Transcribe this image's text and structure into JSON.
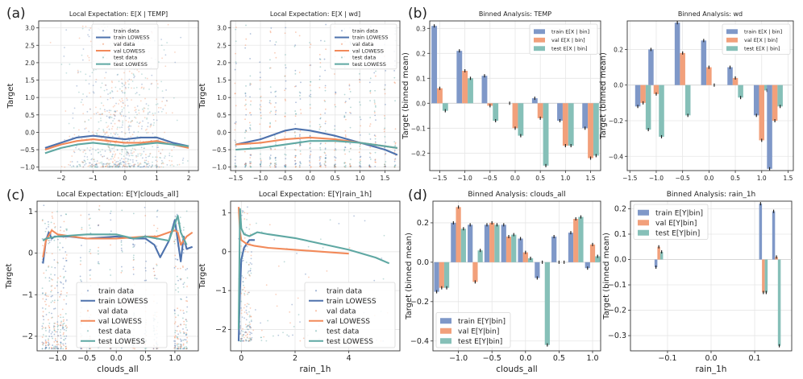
{
  "panel_letters": [
    "(a)",
    "(b)",
    "(c)",
    "(d)"
  ],
  "legend_text": {
    "scatter": [
      "train data",
      "train LOWESS",
      "val data",
      "val LOWESS",
      "test data",
      "test LOWESS"
    ],
    "bar_math": [
      "train E[X | bin]",
      "val E[X | bin]",
      "test E[X | bin]"
    ],
    "bar_plain": [
      "train E[Y|bin]",
      "val E[Y|bin]",
      "test E[Y|bin]"
    ]
  },
  "colors": {
    "train": "#4e72ad",
    "val": "#f28a5a",
    "test": "#5fa8a3",
    "train_bar": "#7f98c8",
    "val_bar": "#f2a07b",
    "test_bar": "#86c0b8",
    "grid": "#e6e6e6",
    "axis": "#333333"
  },
  "chart_data": [
    {
      "type": "scatter",
      "id": "a1",
      "title": "Local Expectation: E[X | TEMP]",
      "title_italic": true,
      "xlabel": "",
      "ylabel": "Target",
      "xlim": [
        -2.7,
        2.3
      ],
      "ylim": [
        -1.1,
        3.2
      ],
      "xticks": [
        -2,
        -1,
        0,
        1,
        2
      ],
      "xticklabels": [
        "−2",
        "−1",
        "0",
        "1",
        "2"
      ],
      "yticks": [
        -1.0,
        -0.5,
        0.0,
        0.5,
        1.0,
        1.5,
        2.0,
        2.5,
        3.0
      ],
      "yticklabels": [
        "−1.0",
        "−0.5",
        "0.0",
        "0.5",
        "1.0",
        "1.5",
        "2.0",
        "2.5",
        "3.0"
      ],
      "legend_style": "small",
      "legend_position": "upper-center",
      "series": [
        {
          "name": "train LOWESS",
          "kind": "train",
          "x": [
            -2.5,
            -2,
            -1.5,
            -1,
            -0.5,
            0,
            0.5,
            1,
            1.5,
            2
          ],
          "y": [
            -0.45,
            -0.3,
            -0.15,
            -0.1,
            -0.15,
            -0.2,
            -0.15,
            -0.15,
            -0.3,
            -0.4
          ]
        },
        {
          "name": "val LOWESS",
          "kind": "val",
          "x": [
            -2.5,
            -2,
            -1.5,
            -1,
            -0.5,
            0,
            0.5,
            1,
            1.5,
            2
          ],
          "y": [
            -0.5,
            -0.35,
            -0.25,
            -0.2,
            -0.25,
            -0.3,
            -0.3,
            -0.25,
            -0.35,
            -0.45
          ]
        },
        {
          "name": "test LOWESS",
          "kind": "test",
          "x": [
            -2.5,
            -2,
            -1.5,
            -1,
            -0.5,
            0,
            0.5,
            1,
            1.5,
            2
          ],
          "y": [
            -0.6,
            -0.45,
            -0.35,
            -0.3,
            -0.35,
            -0.4,
            -0.35,
            -0.3,
            -0.35,
            -0.4
          ]
        }
      ],
      "cloud": {
        "type": "dense",
        "xrange": [
          -2.5,
          2.2
        ],
        "ymin": -1.0,
        "ymax": 3.1
      }
    },
    {
      "type": "scatter",
      "id": "a2",
      "title": "Local Expectation: E[X | wd]",
      "title_italic": true,
      "xlabel": "",
      "ylabel": "Target",
      "xlim": [
        -1.6,
        1.8
      ],
      "ylim": [
        -1.1,
        3.2
      ],
      "xticks": [
        -1.5,
        -1.0,
        -0.5,
        0.0,
        0.5,
        1.0,
        1.5
      ],
      "xticklabels": [
        "−1.5",
        "−1.0",
        "−0.5",
        "0.0",
        "0.5",
        "1.0",
        "1.5"
      ],
      "yticks": [
        -1.0,
        -0.5,
        0.0,
        0.5,
        1.0,
        1.5,
        2.0,
        2.5,
        3.0
      ],
      "yticklabels": [
        "−1.0",
        "−0.5",
        "0.0",
        "0.5",
        "1.0",
        "1.5",
        "2.0",
        "2.5",
        "3.0"
      ],
      "legend_style": "small",
      "legend_position": "upper-right",
      "series": [
        {
          "name": "train LOWESS",
          "kind": "train",
          "x": [
            -1.5,
            -1,
            -0.5,
            -0.3,
            0,
            0.5,
            1,
            1.5,
            1.75
          ],
          "y": [
            -0.35,
            -0.2,
            0.05,
            0.1,
            0.05,
            -0.1,
            -0.3,
            -0.5,
            -0.65
          ]
        },
        {
          "name": "val LOWESS",
          "kind": "val",
          "x": [
            -1.5,
            -1,
            -0.5,
            0,
            0.5,
            1,
            1.5,
            1.75
          ],
          "y": [
            -0.35,
            -0.3,
            -0.2,
            -0.15,
            -0.2,
            -0.3,
            -0.4,
            -0.45
          ]
        },
        {
          "name": "test LOWESS",
          "kind": "test",
          "x": [
            -1.5,
            -1,
            -0.5,
            0,
            0.5,
            1,
            1.5,
            1.75
          ],
          "y": [
            -0.5,
            -0.45,
            -0.35,
            -0.25,
            -0.25,
            -0.3,
            -0.4,
            -0.45
          ]
        }
      ],
      "cloud": {
        "type": "columns",
        "columns": [
          -1.5,
          -1.3,
          -1.2,
          -1.0,
          -0.8,
          -0.7,
          -0.5,
          -0.3,
          -0.2,
          0.0,
          0.2,
          0.3,
          0.5,
          0.7,
          0.8,
          1.0,
          1.2,
          1.3,
          1.5,
          1.7
        ],
        "ymin": -1.0,
        "ymax": 3.1
      }
    },
    {
      "type": "bar",
      "id": "b1",
      "title": "Binned Analysis: TEMP",
      "ylabel": "Target (binned mean)",
      "xlabel": "",
      "categories": [
        -1.5,
        -1.0,
        -0.5,
        0.0,
        0.5,
        1.0,
        1.5
      ],
      "xlim": [
        -1.7,
        1.7
      ],
      "ylim": [
        -0.27,
        0.33
      ],
      "xticks": [
        -1.5,
        -1.0,
        -0.5,
        0.0,
        0.5,
        1.0,
        1.5
      ],
      "xticklabels": [
        "−1.5",
        "−1.0",
        "−0.5",
        "0.0",
        "0.5",
        "1.0",
        "1.5"
      ],
      "yticks": [
        -0.2,
        -0.1,
        0.0,
        0.1,
        0.2,
        0.3
      ],
      "yticklabels": [
        "−0.2",
        "−0.1",
        "0.0",
        "0.1",
        "0.2",
        "0.3"
      ],
      "bar_width": 0.11,
      "legend_style": "math",
      "legend_position": "upper-right",
      "series": [
        {
          "name": "train E[X | bin]",
          "kind": "train",
          "values": [
            0.31,
            0.21,
            0.11,
            0.0,
            0.02,
            -0.07,
            -0.1
          ]
        },
        {
          "name": "val E[X | bin]",
          "kind": "val",
          "values": [
            0.06,
            0.13,
            -0.01,
            -0.1,
            -0.06,
            -0.17,
            -0.22
          ]
        },
        {
          "name": "test E[X | bin]",
          "kind": "test",
          "values": [
            -0.03,
            0.1,
            -0.07,
            -0.13,
            -0.25,
            -0.17,
            -0.21
          ]
        }
      ]
    },
    {
      "type": "bar",
      "id": "b2",
      "title": "Binned Analysis: wd",
      "ylabel": "Target (binned mean)",
      "xlabel": "",
      "categories": [
        -1.25,
        -1.0,
        -0.5,
        0.0,
        0.5,
        1.0,
        1.25
      ],
      "xlim": [
        -1.55,
        1.6
      ],
      "ylim": [
        -0.48,
        0.36
      ],
      "xticks": [
        -1.5,
        -1.0,
        -0.5,
        0.0,
        0.5,
        1.0,
        1.5
      ],
      "xticklabels": [
        "−1.5",
        "−1.0",
        "−0.5",
        "0.0",
        "0.5",
        "1.0",
        "1.5"
      ],
      "yticks": [
        -0.4,
        -0.2,
        0.0,
        0.2
      ],
      "yticklabels": [
        "−0.4",
        "−0.2",
        "0.0",
        "0.2"
      ],
      "bar_width": 0.1,
      "legend_style": "math",
      "legend_position": "upper-right",
      "series": [
        {
          "name": "train E[X | bin]",
          "kind": "train",
          "values": [
            -0.12,
            0.2,
            0.35,
            0.25,
            0.1,
            -0.17,
            -0.47
          ]
        },
        {
          "name": "val E[X | bin]",
          "kind": "val",
          "values": [
            -0.1,
            -0.05,
            0.18,
            0.1,
            0.04,
            -0.31,
            -0.2
          ]
        },
        {
          "name": "test E[X | bin]",
          "kind": "test",
          "values": [
            -0.25,
            -0.29,
            -0.17,
            0.0,
            -0.07,
            -0.03,
            -0.12
          ]
        }
      ]
    },
    {
      "type": "scatter",
      "id": "c1",
      "title": "Local Expectation: E[Y|clouds_all]",
      "title_italic": false,
      "xlabel": "clouds_all",
      "ylabel": "Target",
      "xlim": [
        -1.35,
        1.4
      ],
      "ylim": [
        -2.35,
        1.25
      ],
      "xticks": [
        -1.0,
        -0.5,
        0.0,
        0.5,
        1.0
      ],
      "xticklabels": [
        "−1.0",
        "−0.5",
        "0.0",
        "0.5",
        "1.0"
      ],
      "yticks": [
        -2,
        -1,
        0,
        1
      ],
      "yticklabels": [
        "−2",
        "−1",
        "0",
        "1"
      ],
      "legend_style": "large",
      "legend_position": "lower-center",
      "series": [
        {
          "name": "train LOWESS",
          "kind": "train",
          "x": [
            -1.25,
            -1.2,
            -1.15,
            -1.1,
            -1.05,
            -1.0,
            -0.8,
            -0.5,
            0.0,
            0.3,
            0.5,
            0.65,
            0.75,
            0.9,
            1.0,
            1.05,
            1.1,
            1.15,
            1.2,
            1.3
          ],
          "y": [
            -0.25,
            0.3,
            0.5,
            0.35,
            0.4,
            0.4,
            0.4,
            0.35,
            0.4,
            0.35,
            0.35,
            0.2,
            -0.1,
            0.3,
            0.8,
            0.3,
            -0.2,
            0.4,
            0.1,
            0.15
          ]
        },
        {
          "name": "val LOWESS",
          "kind": "val",
          "x": [
            -1.25,
            -1.2,
            -1.1,
            -1.0,
            -0.5,
            0.0,
            0.5,
            0.7,
            0.9,
            1.0,
            1.05,
            1.1,
            1.2,
            1.3
          ],
          "y": [
            -0.1,
            0.3,
            0.55,
            0.45,
            0.35,
            0.35,
            0.4,
            0.4,
            0.5,
            0.55,
            0.5,
            0.2,
            0.4,
            0.5
          ]
        },
        {
          "name": "test LOWESS",
          "kind": "test",
          "x": [
            -1.25,
            -1.2,
            -1.0,
            -0.5,
            0.0,
            0.3,
            0.5,
            0.7,
            0.9,
            1.0,
            1.05,
            1.1,
            1.2
          ],
          "y": [
            0.3,
            0.35,
            0.4,
            0.45,
            0.45,
            0.35,
            0.4,
            0.35,
            0.3,
            0.7,
            0.9,
            0.5,
            0.2
          ]
        }
      ],
      "cloud": {
        "type": "columns",
        "columns": [
          -1.25,
          -1.2,
          -1.15,
          -1.1,
          -1.05,
          -1.0,
          -0.95,
          -0.9,
          -0.85,
          -0.6,
          -0.45,
          -0.3,
          -0.1,
          0.1,
          0.3,
          0.5,
          0.65,
          0.7,
          1.0,
          1.05,
          1.1,
          1.15,
          1.2
        ],
        "ymin": -2.3,
        "ymax": 1.15
      }
    },
    {
      "type": "scatter",
      "id": "c2",
      "title": "Local Expectation: E[Y|rain_1h]",
      "title_italic": false,
      "xlabel": "rain_1h",
      "ylabel": "Target",
      "xlim": [
        -0.4,
        5.9
      ],
      "ylim": [
        -2.55,
        1.3
      ],
      "xticks": [
        0,
        2,
        4
      ],
      "xticklabels": [
        "0",
        "2",
        "4"
      ],
      "yticks": [
        -2,
        -1,
        0,
        1
      ],
      "yticklabels": [
        "−2",
        "−1",
        "0",
        "1"
      ],
      "legend_style": "large",
      "legend_position": "lower-right",
      "series": [
        {
          "name": "train LOWESS",
          "kind": "train",
          "x": [
            -0.1,
            -0.05,
            0.0,
            0.1,
            0.2,
            0.3,
            0.5
          ],
          "y": [
            -2.3,
            -1.0,
            -0.2,
            0.1,
            0.2,
            0.3,
            0.3
          ]
        },
        {
          "name": "val LOWESS",
          "kind": "val",
          "x": [
            -0.1,
            -0.05,
            0.0,
            0.2,
            0.5,
            1.0,
            2.0,
            3.0,
            4.0
          ],
          "y": [
            1.15,
            0.5,
            0.3,
            0.2,
            0.15,
            0.1,
            0.05,
            0.0,
            -0.05
          ]
        },
        {
          "name": "test LOWESS",
          "kind": "test",
          "x": [
            -0.1,
            -0.05,
            0.0,
            0.1,
            0.3,
            0.6,
            1.0,
            2.0,
            3.0,
            4.0,
            5.0,
            5.5
          ],
          "y": [
            -2.0,
            1.1,
            0.6,
            0.45,
            0.4,
            0.5,
            0.45,
            0.35,
            0.2,
            0.05,
            -0.15,
            -0.3
          ]
        }
      ],
      "cloud": {
        "type": "rain",
        "ymin": -2.3,
        "ymax": 1.15
      }
    },
    {
      "type": "bar",
      "id": "d1",
      "title": "Binned Analysis: clouds_all",
      "ylabel": "Target (binned mean)",
      "xlabel": "clouds_all",
      "categories": [
        -1.25,
        -1.0,
        -0.75,
        -0.5,
        -0.25,
        0.0,
        0.25,
        0.5,
        0.75,
        1.0
      ],
      "xlim": [
        -1.38,
        1.12
      ],
      "ylim": [
        -0.45,
        0.31
      ],
      "xticks": [
        -1.0,
        -0.5,
        0.0,
        0.5,
        1.0
      ],
      "xticklabels": [
        "−1.0",
        "−0.5",
        "0.0",
        "0.5",
        "1.0"
      ],
      "yticks": [
        -0.4,
        -0.2,
        0.0,
        0.2
      ],
      "yticklabels": [
        "−0.4",
        "−0.2",
        "0.0",
        "0.2"
      ],
      "bar_width": 0.075,
      "legend_style": "plain",
      "legend_position": "lower-left",
      "series": [
        {
          "name": "train E[Y|bin]",
          "kind": "train",
          "values": [
            -0.15,
            0.2,
            0.19,
            0.19,
            0.19,
            0.12,
            -0.08,
            0.13,
            0.15,
            -0.03
          ]
        },
        {
          "name": "val E[Y|bin]",
          "kind": "val",
          "values": [
            -0.13,
            0.28,
            -0.1,
            0.2,
            0.13,
            0.05,
            0.0,
            0.0,
            0.22,
            0.09
          ]
        },
        {
          "name": "test E[Y|bin]",
          "kind": "test",
          "values": [
            -0.13,
            0.17,
            0.06,
            0.19,
            0.14,
            0.02,
            -0.42,
            0.0,
            0.23,
            0.03
          ]
        }
      ]
    },
    {
      "type": "bar",
      "id": "d2",
      "title": "Binned Analysis: rain_1h",
      "ylabel": "Target (binned mean)",
      "xlabel": "rain_1h",
      "categories": [
        -0.12,
        0.12,
        0.15
      ],
      "xlim": [
        -0.185,
        0.185
      ],
      "ylim": [
        -0.36,
        0.23
      ],
      "xticks": [
        -0.1,
        0.0,
        0.1
      ],
      "xticklabels": [
        "−0.1",
        "0.0",
        "0.1"
      ],
      "yticks": [
        -0.3,
        -0.2,
        -0.1,
        0.0,
        0.1,
        0.2
      ],
      "yticklabels": [
        "−0.3",
        "−0.2",
        "−0.1",
        "0.0",
        "0.1",
        "0.2"
      ],
      "bar_width": 0.0065,
      "legend_style": "plain",
      "legend_position": "upper-left",
      "series": [
        {
          "name": "train E[Y|bin]",
          "kind": "train",
          "values": [
            -0.03,
            0.22,
            0.19
          ]
        },
        {
          "name": "val E[Y|bin]",
          "kind": "val",
          "values": [
            0.05,
            -0.13,
            0.01
          ]
        },
        {
          "name": "test E[Y|bin]",
          "kind": "test",
          "values": [
            0.03,
            -0.13,
            -0.34
          ]
        }
      ]
    }
  ]
}
